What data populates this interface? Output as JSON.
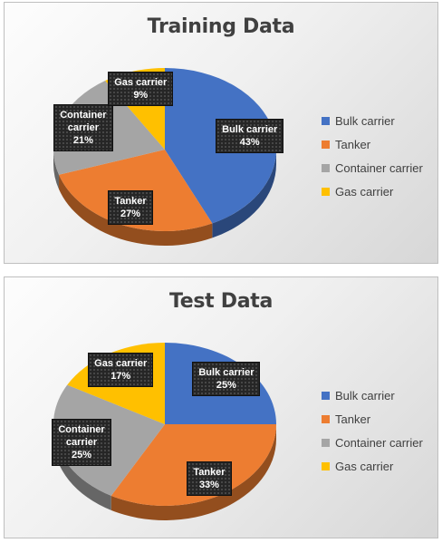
{
  "colors": {
    "Bulk carrier": "#4472c4",
    "Tanker": "#ed7d31",
    "Container carrier": "#a5a5a5",
    "Gas carrier": "#ffc000"
  },
  "chart_data": [
    {
      "type": "pie",
      "title": "Training Data",
      "style": "3d pie with boxed data labels",
      "legend_position": "right",
      "slices": [
        {
          "name": "Bulk carrier",
          "value": 43,
          "label_name": "Bulk carrier",
          "label_pct": "43%"
        },
        {
          "name": "Tanker",
          "value": 27,
          "label_name": "Tanker",
          "label_pct": "27%"
        },
        {
          "name": "Container carrier",
          "value": 21,
          "label_name": "Container\ncarrier",
          "label_pct": "21%"
        },
        {
          "name": "Gas carrier",
          "value": 9,
          "label_name": "Gas carrier",
          "label_pct": "9%"
        }
      ]
    },
    {
      "type": "pie",
      "title": "Test Data",
      "style": "3d pie with boxed data labels",
      "legend_position": "right",
      "slices": [
        {
          "name": "Bulk carrier",
          "value": 25,
          "label_name": "Bulk carrier",
          "label_pct": "25%"
        },
        {
          "name": "Tanker",
          "value": 33,
          "label_name": "Tanker",
          "label_pct": "33%"
        },
        {
          "name": "Container carrier",
          "value": 25,
          "label_name": "Container\ncarrier",
          "label_pct": "25%"
        },
        {
          "name": "Gas carrier",
          "value": 17,
          "label_name": "Gas carrier",
          "label_pct": "17%"
        }
      ]
    }
  ]
}
